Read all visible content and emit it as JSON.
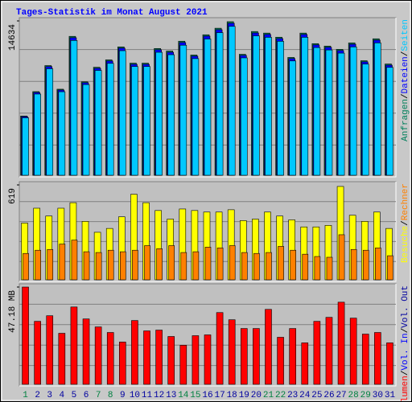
{
  "chart_data": {
    "type": "bar",
    "title": "Tages-Statistik im Monat August 2021",
    "categories": [
      "1",
      "2",
      "3",
      "4",
      "5",
      "6",
      "7",
      "8",
      "9",
      "10",
      "11",
      "12",
      "13",
      "14",
      "15",
      "16",
      "17",
      "18",
      "19",
      "20",
      "21",
      "22",
      "23",
      "24",
      "25",
      "26",
      "27",
      "28",
      "29",
      "30",
      "31"
    ],
    "highlight_categories": [
      "1",
      "7",
      "8",
      "14",
      "15",
      "21",
      "22",
      "28",
      "29"
    ],
    "highlight_color": "#008040",
    "category_color": "#0000a0",
    "legend_separator": "/",
    "panels": [
      {
        "ylim": [
          0,
          14634
        ],
        "yticks": [
          14634
        ],
        "legend": [],
        "series": [
          {
            "name": "Anfragen",
            "color": "#00805c",
            "values": [
              5620,
              7930,
              10400,
              8160,
              13170,
              8860,
              10240,
              10940,
              12170,
              10630,
              10630,
              12020,
              11780,
              12710,
              11400,
              13320,
              13940,
              14560,
              11470,
              13630,
              13480,
              13090,
              11170,
              13480,
              12480,
              12250,
              11940,
              12550,
              10860,
              12940,
              10550
            ]
          },
          {
            "name": "Dateien",
            "color": "#0000ff",
            "values": [
              5560,
              7850,
              10300,
              8080,
              13040,
              8770,
              10140,
              10830,
              12050,
              10520,
              10520,
              11900,
              11660,
              12580,
              11290,
              13190,
              13800,
              14410,
              11360,
              13490,
              13350,
              12960,
              11060,
              13350,
              12360,
              12130,
              11820,
              12420,
              10750,
              12810,
              10440
            ]
          },
          {
            "name": "Seiten",
            "color": "#00c8ff",
            "values": [
              5450,
              7700,
              10100,
              7920,
              12780,
              8600,
              9940,
              10610,
              11810,
              10310,
              10310,
              11660,
              11430,
              12330,
              11060,
              12920,
              13520,
              14120,
              11130,
              13220,
              13080,
              12700,
              10840,
              13080,
              12110,
              11880,
              11580,
              12170,
              10540,
              12550,
              10230
            ]
          }
        ]
      },
      {
        "ylim": [
          0,
          619
        ],
        "yticks": [
          619
        ],
        "legend": [],
        "series": [
          {
            "name": "Besuche",
            "color": "#ffff00",
            "values": [
              370,
              467,
              416,
              467,
              503,
              381,
              310,
              335,
              411,
              558,
              503,
              452,
              396,
              462,
              452,
              442,
              442,
              457,
              386,
              396,
              442,
              416,
              391,
              345,
              345,
              355,
              609,
              421,
              381,
              442,
              335
            ]
          },
          {
            "name": "Rechner",
            "color": "#ff8000",
            "values": [
              172,
              193,
              198,
              233,
              259,
              183,
              178,
              193,
              183,
              193,
              223,
              203,
              223,
              178,
              183,
              213,
              208,
              223,
              178,
              172,
              178,
              218,
              193,
              167,
              152,
              147,
              294,
              198,
              193,
              208,
              157
            ]
          }
        ]
      },
      {
        "ylim": [
          0,
          47.18
        ],
        "yticks": [
          {
            "value": 47.18,
            "label": "47.18 MB"
          }
        ],
        "legend": [
          {
            "name": "Vol. In",
            "color": "#0000ff"
          },
          {
            "name": "Vol. Out",
            "color": "#0000a0"
          }
        ],
        "series": [
          {
            "name": "Volumen",
            "color": "#ff0000",
            "values": [
              47.18,
              30.55,
              33.26,
              24.75,
              37.51,
              31.71,
              27.84,
              25.14,
              20.5,
              30.94,
              25.91,
              26.3,
              23.2,
              18.95,
              23.59,
              23.98,
              34.8,
              31.32,
              27.07,
              27.07,
              36.35,
              22.82,
              27.07,
              20.11,
              30.55,
              32.48,
              39.83,
              32.1,
              24.36,
              25.14,
              20.11
            ]
          }
        ]
      }
    ]
  }
}
